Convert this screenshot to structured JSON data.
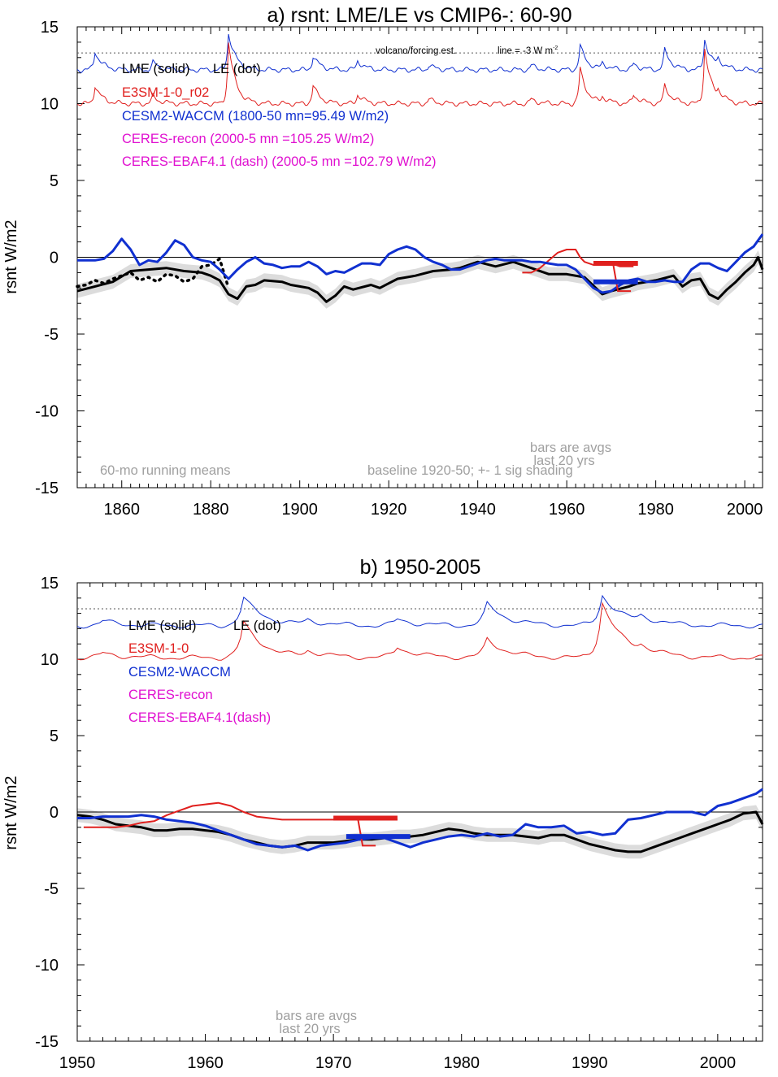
{
  "chart_data": [
    {
      "type": "line",
      "title": "a) rsnt: LME/LE vs CMIP6-: 60-90",
      "ylabel": "rsnt W/m2",
      "xlim": [
        1850,
        2004
      ],
      "ylim": [
        -15,
        15
      ],
      "xticks": [
        1860,
        1880,
        1900,
        1920,
        1940,
        1960,
        1980,
        2000
      ],
      "yticks": [
        15,
        10,
        5,
        0,
        -5,
        -10,
        -15
      ],
      "zero_line": 0,
      "reference_line": {
        "y": 13.3,
        "style": "dotted"
      },
      "annotations": {
        "volcano": "volcano/forcing est.",
        "line_note": "line = -3 W m",
        "line_note_sup": "-2",
        "bars_l1": "bars are avgs",
        "bars_l2": "last 20 yrs",
        "running": "60-mo running means",
        "baseline": "baseline 1920-50; +- 1 sig shading"
      },
      "legend": {
        "lme_le_a": "LME (solid)",
        "lme_le_b": "LE (dot)",
        "e3sm": "E3SM-1-0_r02",
        "cesm": "CESM2-WACCM (1800-50 mn=95.49 W/m2)",
        "ceres_recon": "CERES-recon (2000-5 mn =105.25 W/m2)",
        "ceres_ebaf": "CERES-EBAF4.1 (dash) (2000-5 mn =102.79 W/m2)"
      },
      "series": [
        {
          "name": "LME (solid)",
          "color": "#000000",
          "style": "solid",
          "width": 3,
          "x": [
            1850,
            1854,
            1858,
            1862,
            1866,
            1870,
            1874,
            1878,
            1880,
            1882,
            1884,
            1886,
            1888,
            1890,
            1892,
            1896,
            1898,
            1900,
            1902,
            1904,
            1906,
            1908,
            1910,
            1912,
            1916,
            1918,
            1920,
            1922,
            1924,
            1926,
            1930,
            1934,
            1936,
            1938,
            1940,
            1944,
            1948,
            1952,
            1956,
            1960,
            1964,
            1968,
            1970,
            1974,
            1976,
            1980,
            1984,
            1986,
            1988,
            1990,
            1992,
            1994,
            1996,
            1998,
            2000,
            2002,
            2003,
            2004
          ],
          "y": [
            -2.2,
            -1.9,
            -1.6,
            -0.9,
            -0.8,
            -0.7,
            -0.9,
            -1.0,
            -1.2,
            -1.5,
            -2.4,
            -2.7,
            -1.9,
            -1.8,
            -1.5,
            -1.6,
            -1.8,
            -1.9,
            -2.0,
            -2.3,
            -2.9,
            -2.5,
            -1.9,
            -2.1,
            -1.8,
            -2.0,
            -1.7,
            -1.4,
            -1.3,
            -1.2,
            -0.9,
            -0.8,
            -0.7,
            -0.5,
            -0.3,
            -0.6,
            -0.3,
            -0.7,
            -1.1,
            -1.1,
            -1.3,
            -2.4,
            -2.2,
            -1.9,
            -1.7,
            -1.5,
            -1.2,
            -1.9,
            -1.5,
            -1.4,
            -2.4,
            -2.7,
            -2.1,
            -1.6,
            -1.0,
            -0.5,
            0.0,
            -0.8
          ]
        },
        {
          "name": "LE (dot)",
          "color": "#000000",
          "style": "dotted",
          "width": 3,
          "x": [
            1850,
            1852,
            1854,
            1856,
            1858,
            1860,
            1862,
            1864,
            1866,
            1868,
            1870,
            1872,
            1874,
            1876,
            1878,
            1880,
            1882,
            1884
          ],
          "y": [
            -1.9,
            -1.8,
            -1.5,
            -1.7,
            -1.4,
            -1.2,
            -1.0,
            -1.5,
            -1.3,
            -1.6,
            -1.1,
            -1.2,
            -1.6,
            -1.4,
            -0.6,
            -0.5,
            -0.1,
            -2.0
          ]
        },
        {
          "name": "E3SM-1-0_r02",
          "color": "#e0201e",
          "style": "solid",
          "width": 2,
          "x": [
            1950,
            1952,
            1954,
            1956,
            1958,
            1960,
            1962,
            1963,
            1964,
            1966,
            1968,
            1970,
            1972,
            1974,
            1975
          ],
          "y": [
            -1.0,
            -1.0,
            -0.7,
            -0.2,
            0.3,
            0.5,
            0.5,
            0.0,
            -0.3,
            -0.5,
            -0.5,
            -0.4,
            -0.6,
            -0.6,
            -0.6
          ]
        },
        {
          "name": "CESM2-WACCM",
          "color": "#1030d0",
          "style": "solid",
          "width": 3,
          "x": [
            1850,
            1852,
            1854,
            1856,
            1858,
            1860,
            1862,
            1864,
            1866,
            1868,
            1870,
            1872,
            1874,
            1876,
            1878,
            1880,
            1882,
            1884,
            1886,
            1888,
            1890,
            1892,
            1894,
            1896,
            1898,
            1900,
            1902,
            1904,
            1906,
            1908,
            1910,
            1912,
            1914,
            1916,
            1918,
            1920,
            1922,
            1924,
            1926,
            1928,
            1930,
            1932,
            1934,
            1936,
            1938,
            1940,
            1942,
            1944,
            1946,
            1948,
            1950,
            1952,
            1954,
            1956,
            1958,
            1960,
            1962,
            1964,
            1966,
            1968,
            1970,
            1972,
            1974,
            1976,
            1978,
            1980,
            1982,
            1984,
            1986,
            1988,
            1990,
            1992,
            1994,
            1996,
            1998,
            2000,
            2002,
            2004
          ],
          "y": [
            -0.2,
            -0.2,
            -0.2,
            -0.1,
            0.4,
            1.2,
            0.5,
            -0.5,
            -0.2,
            -0.3,
            0.3,
            1.1,
            0.8,
            0.0,
            -0.2,
            -0.3,
            -0.8,
            -1.4,
            -0.8,
            -0.3,
            0.0,
            -0.4,
            -0.5,
            -0.7,
            -0.6,
            -0.6,
            -0.3,
            -0.6,
            -1.1,
            -0.9,
            -1.0,
            -0.7,
            -0.4,
            -0.4,
            -0.5,
            0.2,
            0.5,
            0.7,
            0.5,
            0.0,
            -0.3,
            -0.5,
            -0.8,
            -0.8,
            -0.6,
            -0.4,
            -0.2,
            -0.1,
            -0.2,
            -0.2,
            -0.2,
            -0.3,
            -0.3,
            -0.4,
            -0.5,
            -0.5,
            -0.8,
            -1.4,
            -2.0,
            -2.3,
            -2.2,
            -1.8,
            -1.5,
            -1.4,
            -1.6,
            -1.6,
            -1.5,
            -1.6,
            -1.6,
            -0.8,
            -0.4,
            -0.4,
            -0.7,
            -0.9,
            -0.3,
            0.3,
            0.7,
            1.5
          ]
        }
      ],
      "shading": {
        "color": "#dcdcdc",
        "sigma": 0.45
      },
      "bars": [
        {
          "series": "E3SM-1-0_r02",
          "color": "#e0201e",
          "x0": 1966,
          "x1": 1976,
          "y": -0.4,
          "stem_to": -2.2
        },
        {
          "series": "CESM2-WACCM",
          "color": "#1030d0",
          "x0": 1966,
          "x1": 1976,
          "y": -1.6
        }
      ],
      "forcing_lines": [
        {
          "color": "#1030d0",
          "base": 12.2,
          "peaks": [
            [
              1854,
              1.2
            ],
            [
              1867,
              0.5
            ],
            [
              1884,
              2.4
            ],
            [
              1903,
              0.9
            ],
            [
              1913,
              0.6
            ],
            [
              1929,
              0.3
            ],
            [
              1952,
              0.3
            ],
            [
              1963,
              1.6
            ],
            [
              1968,
              0.4
            ],
            [
              1975,
              0.4
            ],
            [
              1982,
              1.3
            ],
            [
              1991,
              2.0
            ],
            [
              1994,
              0.5
            ]
          ]
        },
        {
          "color": "#e0201e",
          "base": 10.0,
          "peaks": [
            [
              1854,
              1.2
            ],
            [
              1867,
              0.5
            ],
            [
              1884,
              4.0
            ],
            [
              1903,
              1.2
            ],
            [
              1913,
              0.6
            ],
            [
              1929,
              0.3
            ],
            [
              1952,
              0.3
            ],
            [
              1963,
              2.3
            ],
            [
              1968,
              0.4
            ],
            [
              1975,
              0.6
            ],
            [
              1982,
              1.2
            ],
            [
              1991,
              3.6
            ],
            [
              1994,
              0.5
            ]
          ]
        }
      ]
    },
    {
      "type": "line",
      "title": "b) 1950-2005",
      "ylabel": "rsnt W/m2",
      "xlim": [
        1950,
        2003.5
      ],
      "ylim": [
        -15,
        15
      ],
      "xticks": [
        1950,
        1960,
        1970,
        1980,
        1990,
        2000
      ],
      "yticks": [
        15,
        10,
        5,
        0,
        -5,
        -10,
        -15
      ],
      "zero_line": 0,
      "reference_line": {
        "y": 13.3,
        "style": "dotted"
      },
      "annotations": {
        "bars_l1": "bars are avgs",
        "bars_l2": "last 20 yrs"
      },
      "legend": {
        "lme_le_a": "LME (solid)",
        "lme_le_b": "LE (dot)",
        "e3sm": "E3SM-1-0",
        "cesm": "CESM2-WACCM",
        "ceres_recon": "CERES-recon",
        "ceres_ebaf": "CERES-EBAF4.1(dash)"
      },
      "series": [
        {
          "name": "LME (solid)",
          "color": "#000000",
          "style": "solid",
          "width": 3,
          "x": [
            1950,
            1951,
            1952,
            1953,
            1954,
            1955,
            1956,
            1957,
            1958,
            1959,
            1960,
            1961,
            1962,
            1963,
            1964,
            1965,
            1966,
            1967,
            1968,
            1969,
            1970,
            1971,
            1972,
            1973,
            1974,
            1975,
            1976,
            1977,
            1978,
            1979,
            1980,
            1981,
            1982,
            1983,
            1984,
            1985,
            1986,
            1987,
            1988,
            1989,
            1990,
            1991,
            1992,
            1993,
            1994,
            1995,
            1996,
            1997,
            1998,
            1999,
            2000,
            2001,
            2002,
            2003,
            2003.5
          ],
          "y": [
            -0.2,
            -0.3,
            -0.5,
            -0.8,
            -0.9,
            -1.0,
            -1.2,
            -1.2,
            -1.1,
            -1.1,
            -1.2,
            -1.3,
            -1.5,
            -1.8,
            -2.0,
            -2.2,
            -2.3,
            -2.2,
            -2.0,
            -2.0,
            -2.0,
            -1.9,
            -1.8,
            -1.8,
            -1.7,
            -1.6,
            -1.6,
            -1.5,
            -1.3,
            -1.1,
            -1.2,
            -1.4,
            -1.5,
            -1.5,
            -1.5,
            -1.6,
            -1.7,
            -1.5,
            -1.5,
            -1.8,
            -2.1,
            -2.3,
            -2.5,
            -2.6,
            -2.6,
            -2.3,
            -2.0,
            -1.7,
            -1.4,
            -1.1,
            -0.8,
            -0.5,
            -0.1,
            0.0,
            -0.8
          ]
        },
        {
          "name": "E3SM-1-0",
          "color": "#e0201e",
          "style": "solid",
          "width": 2,
          "x": [
            1950.5,
            1952,
            1953,
            1954,
            1955,
            1956,
            1957,
            1958,
            1959,
            1960,
            1961,
            1962,
            1963,
            1964,
            1965,
            1966,
            1967,
            1968,
            1969,
            1970,
            1971,
            1972,
            1973,
            1974,
            1975
          ],
          "y": [
            -1.0,
            -1.0,
            -1.0,
            -0.9,
            -0.7,
            -0.6,
            -0.2,
            0.1,
            0.4,
            0.5,
            0.6,
            0.4,
            0.0,
            -0.3,
            -0.4,
            -0.5,
            -0.5,
            -0.5,
            -0.5,
            -0.5,
            -0.5,
            -0.5,
            -0.5,
            -0.5,
            -0.5
          ]
        },
        {
          "name": "CESM2-WACCM",
          "color": "#1030d0",
          "style": "solid",
          "width": 3,
          "x": [
            1950,
            1951,
            1952,
            1953,
            1954,
            1955,
            1956,
            1957,
            1958,
            1959,
            1960,
            1961,
            1962,
            1963,
            1964,
            1965,
            1966,
            1967,
            1968,
            1969,
            1970,
            1971,
            1972,
            1973,
            1974,
            1975,
            1976,
            1977,
            1978,
            1979,
            1980,
            1981,
            1982,
            1983,
            1984,
            1985,
            1986,
            1987,
            1988,
            1989,
            1990,
            1991,
            1992,
            1993,
            1994,
            1995,
            1996,
            1997,
            1998,
            1999,
            2000,
            2001,
            2002,
            2003,
            2003.5
          ],
          "y": [
            -0.4,
            -0.4,
            -0.3,
            -0.3,
            -0.3,
            -0.2,
            -0.3,
            -0.5,
            -0.6,
            -0.7,
            -0.9,
            -1.2,
            -1.5,
            -1.8,
            -2.1,
            -2.2,
            -2.3,
            -2.2,
            -2.5,
            -2.2,
            -2.1,
            -2.0,
            -1.8,
            -1.7,
            -1.7,
            -2.0,
            -2.3,
            -2.0,
            -1.8,
            -1.6,
            -1.5,
            -1.6,
            -1.4,
            -1.6,
            -1.5,
            -0.8,
            -1.0,
            -1.0,
            -0.9,
            -1.4,
            -1.3,
            -1.5,
            -1.4,
            -0.5,
            -0.4,
            -0.2,
            0.0,
            0.0,
            0.0,
            -0.2,
            0.4,
            0.6,
            0.9,
            1.2,
            1.5
          ]
        }
      ],
      "shading": {
        "color": "#dcdcdc",
        "sigma": 0.45
      },
      "bars": [
        {
          "series": "E3SM-1-0",
          "color": "#e0201e",
          "x0": 1970,
          "x1": 1975,
          "y": -0.4,
          "stem_to": -2.2
        },
        {
          "series": "CESM2-WACCM",
          "color": "#1030d0",
          "x0": 1971,
          "x1": 1976,
          "y": -1.6
        }
      ],
      "forcing_lines": [
        {
          "color": "#1030d0",
          "base": 12.2,
          "peaks": [
            [
              1952,
              0.3
            ],
            [
              1963,
              1.8
            ],
            [
              1968,
              0.3
            ],
            [
              1975,
              0.4
            ],
            [
              1982,
              1.4
            ],
            [
              1991,
              2.0
            ],
            [
              1994,
              0.4
            ]
          ]
        },
        {
          "color": "#e0201e",
          "base": 10.1,
          "peaks": [
            [
              1952,
              0.3
            ],
            [
              1963,
              2.3
            ],
            [
              1968,
              0.4
            ],
            [
              1975,
              0.7
            ],
            [
              1982,
              1.2
            ],
            [
              1991,
              3.6
            ],
            [
              1994,
              0.4
            ]
          ]
        }
      ]
    }
  ]
}
